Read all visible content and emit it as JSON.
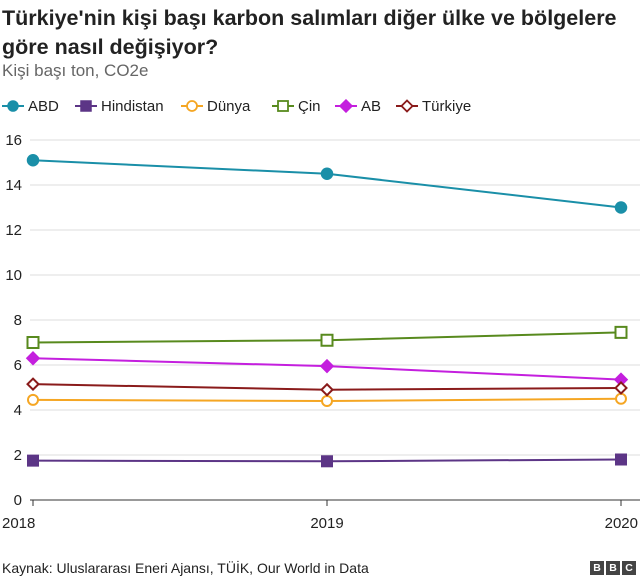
{
  "title": "Türkiye'nin kişi başı karbon salımları diğer ülke ve bölgelere göre nasıl değişiyor?",
  "subtitle": "Kişi başı ton, CO2e",
  "source": "Kaynak: Uluslararası Eneri Ajansı, TÜİK, Our World in Data",
  "logo": [
    "B",
    "B",
    "C"
  ],
  "chart_data": {
    "type": "line",
    "title": "Türkiye'nin kişi başı karbon salımları diğer ülke ve bölgelere göre nasıl değişiyor?",
    "subtitle": "Kişi başı ton, CO2e",
    "x": [
      "2018",
      "2019",
      "2020"
    ],
    "ylim": [
      0,
      16
    ],
    "yticks": [
      "0",
      "2",
      "4",
      "6",
      "8",
      "10",
      "12",
      "14",
      "16"
    ],
    "grid": true,
    "legend_position": "top",
    "series": [
      {
        "name": "ABD",
        "values": [
          15.1,
          14.5,
          13.0
        ],
        "color": "#1a8fa8",
        "marker": "circle-filled"
      },
      {
        "name": "Hindistan",
        "values": [
          1.75,
          1.72,
          1.8
        ],
        "color": "#5c3586",
        "marker": "square-filled"
      },
      {
        "name": "Dünya",
        "values": [
          4.45,
          4.4,
          4.5
        ],
        "color": "#f5a623",
        "marker": "circle-open"
      },
      {
        "name": "Çin",
        "values": [
          7.0,
          7.1,
          7.45
        ],
        "color": "#588a1e",
        "marker": "square-open"
      },
      {
        "name": "AB",
        "values": [
          6.3,
          5.95,
          5.35
        ],
        "color": "#c41fde",
        "marker": "diamond-filled"
      },
      {
        "name": "Türkiye",
        "values": [
          5.15,
          4.9,
          4.98
        ],
        "color": "#8a1b1b",
        "marker": "diamond-open"
      }
    ]
  }
}
